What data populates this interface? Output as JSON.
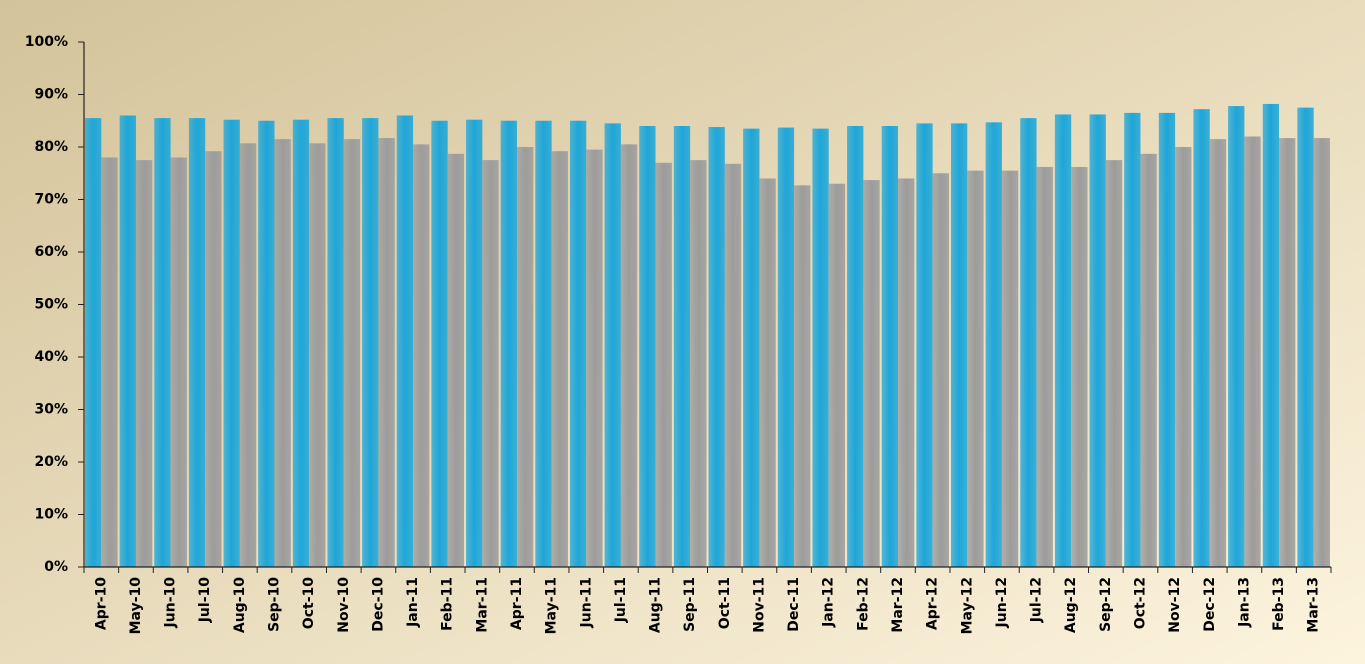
{
  "chart_data": {
    "type": "bar",
    "categories": [
      "Apr-10",
      "May-10",
      "Jun-10",
      "Jul-10",
      "Aug-10",
      "Sep-10",
      "Oct-10",
      "Nov-10",
      "Dec-10",
      "Jan-11",
      "Feb-11",
      "Mar-11",
      "Apr-11",
      "May-11",
      "Jun-11",
      "Jul-11",
      "Aug-11",
      "Sep-11",
      "Oct-11",
      "Nov-11",
      "Dec-11",
      "Jan-12",
      "Feb-12",
      "Mar-12",
      "Apr-12",
      "May-12",
      "Jun-12",
      "Jul-12",
      "Aug-12",
      "Sep-12",
      "Oct-12",
      "Nov-12",
      "Dec-12",
      "Jan-13",
      "Feb-13",
      "Mar-13"
    ],
    "series": [
      {
        "color": "#1ea6d8",
        "values": [
          85.5,
          86,
          85.5,
          85.5,
          85.2,
          85,
          85.2,
          85.5,
          85.5,
          86,
          85,
          85.2,
          85,
          85,
          85,
          84.5,
          84,
          84,
          83.8,
          83.5,
          83.7,
          83.5,
          84,
          84,
          84.5,
          84.5,
          84.7,
          85.5,
          86.2,
          86.2,
          86.5,
          86.5,
          87.2,
          87.8,
          88.2,
          87.5
        ]
      },
      {
        "color": "#9c9c9c",
        "values": [
          78,
          77.5,
          78,
          79.2,
          80.7,
          81.5,
          80.7,
          81.5,
          81.7,
          80.5,
          78.7,
          77.5,
          80,
          79.2,
          79.5,
          80.5,
          77,
          77.5,
          76.8,
          74,
          72.7,
          73,
          73.7,
          74,
          75,
          75.5,
          75.5,
          76.2,
          76.2,
          77.5,
          78.7,
          80,
          81.5,
          82,
          81.7,
          81.7
        ]
      }
    ],
    "ylim": [
      0,
      100
    ],
    "yticks": [
      {
        "value": 0,
        "label": "0%"
      },
      {
        "value": 10,
        "label": "10%"
      },
      {
        "value": 20,
        "label": "20%"
      },
      {
        "value": 30,
        "label": "30%"
      },
      {
        "value": 40,
        "label": "40%"
      },
      {
        "value": 50,
        "label": "50%"
      },
      {
        "value": 60,
        "label": "60%"
      },
      {
        "value": 70,
        "label": "70%"
      },
      {
        "value": 80,
        "label": "80%"
      },
      {
        "value": 90,
        "label": "90%"
      },
      {
        "value": 100,
        "label": "100%"
      }
    ],
    "grid": false
  }
}
